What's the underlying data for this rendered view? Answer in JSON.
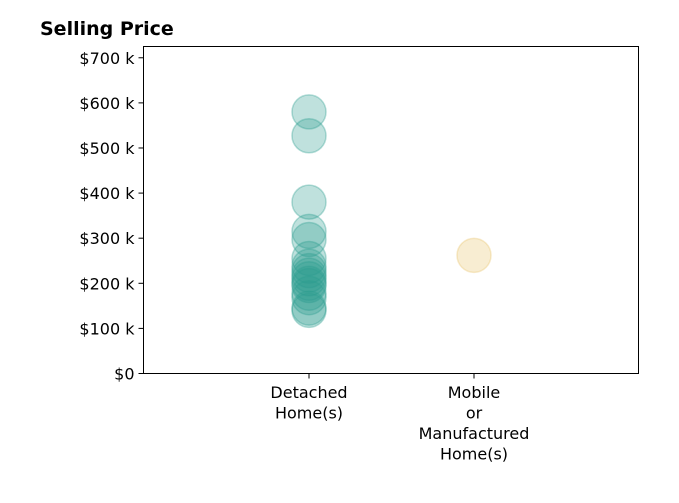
{
  "chart_data": {
    "type": "scatter",
    "title": "Selling Price",
    "xlabel": "",
    "ylabel": "",
    "categories": [
      [
        "Detached",
        "Home(s)"
      ],
      [
        "Mobile",
        "or",
        "Manufactured",
        "Home(s)"
      ]
    ],
    "ylim": [
      0,
      725000
    ],
    "yticks": [
      0,
      100000,
      200000,
      300000,
      400000,
      500000,
      600000,
      700000
    ],
    "ytick_labels": [
      "$0",
      "$100 k",
      "$200 k",
      "$300 k",
      "$400 k",
      "$500 k",
      "$600 k",
      "$700 k"
    ],
    "grid": false,
    "legend": "none",
    "series": [
      {
        "category_index": 0,
        "color": "#2a9d8f",
        "values": [
          580000,
          527000,
          380000,
          315000,
          297000,
          255000,
          238000,
          228000,
          218000,
          210000,
          200000,
          195000,
          178000,
          168000,
          145000,
          140000
        ]
      },
      {
        "category_index": 1,
        "color": "#e9c46a",
        "values": [
          262000
        ]
      }
    ]
  }
}
